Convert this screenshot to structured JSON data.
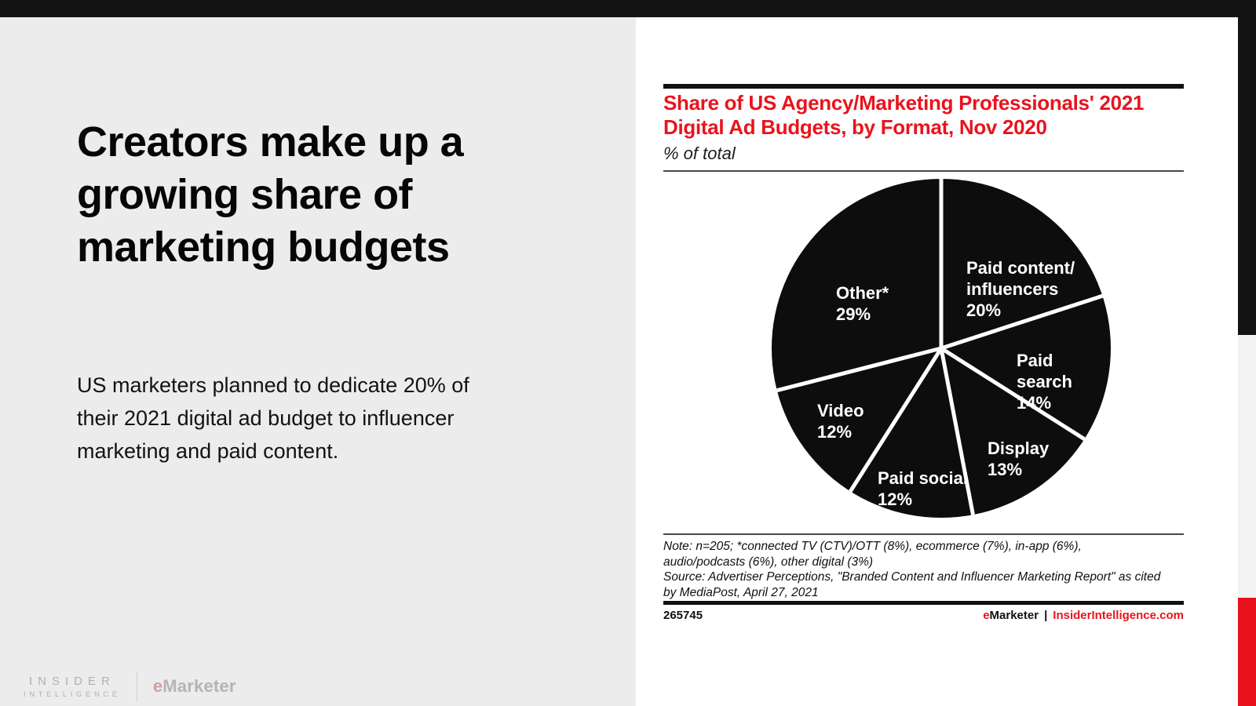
{
  "slide": {
    "headline": "Creators make up a\ngrowing share of\nmarketing budgets",
    "body": "US marketers planned to dedicate 20% of\ntheir 2021 digital ad budget to influencer\nmarketing and paid content."
  },
  "brand": {
    "insider_line1": "INSIDER",
    "insider_line2": "INTELLIGENCE",
    "emarketer_e": "e",
    "emarketer_rest": "Marketer"
  },
  "chart_panel": {
    "title": "Share of US Agency/Marketing Professionals' 2021\nDigital Ad Budgets, by Format, Nov 2020",
    "subtitle": "% of total",
    "note": "Note: n=205; *connected TV (CTV)/OTT (8%), ecommerce (7%), in-app (6%),\naudio/podcasts (6%), other digital (3%)",
    "source": "Source: Advertiser Perceptions, \"Branded Content and Influencer Marketing Report\" as cited\nby MediaPost, April 27, 2021",
    "chart_id": "265745",
    "footer_brand_e": "e",
    "footer_brand_rest": "Marketer",
    "footer_separator": "|",
    "footer_site": "InsiderIntelligence.com"
  },
  "chart_data": {
    "type": "pie",
    "title": "Share of US Agency/Marketing Professionals' 2021 Digital Ad Budgets, by Format, Nov 2020",
    "subtitle": "% of total",
    "categories": [
      "Paid content/influencers",
      "Paid search",
      "Display",
      "Paid social",
      "Video",
      "Other*"
    ],
    "values": [
      20,
      14,
      13,
      12,
      12,
      29
    ],
    "start_angle": "12-oclock",
    "direction": "clockwise",
    "slice_color": "#0d0d0d",
    "divider_color": "#ffffff",
    "label_color": "#ffffff",
    "slices": [
      {
        "label": "Paid content/\ninfluencers",
        "value": "20%"
      },
      {
        "label": "Paid search",
        "value": "14%"
      },
      {
        "label": "Display",
        "value": "13%"
      },
      {
        "label": "Paid social",
        "value": "12%"
      },
      {
        "label": "Video",
        "value": "12%"
      },
      {
        "label": "Other*",
        "value": "29%"
      }
    ]
  },
  "colors": {
    "accent_red": "#e8101b",
    "title_red": "#e8141d",
    "top_bar_black": "#131313",
    "left_bg_gray": "#ececec",
    "panel_white": "#ffffff",
    "edge_gray": "#f3f3f3"
  }
}
